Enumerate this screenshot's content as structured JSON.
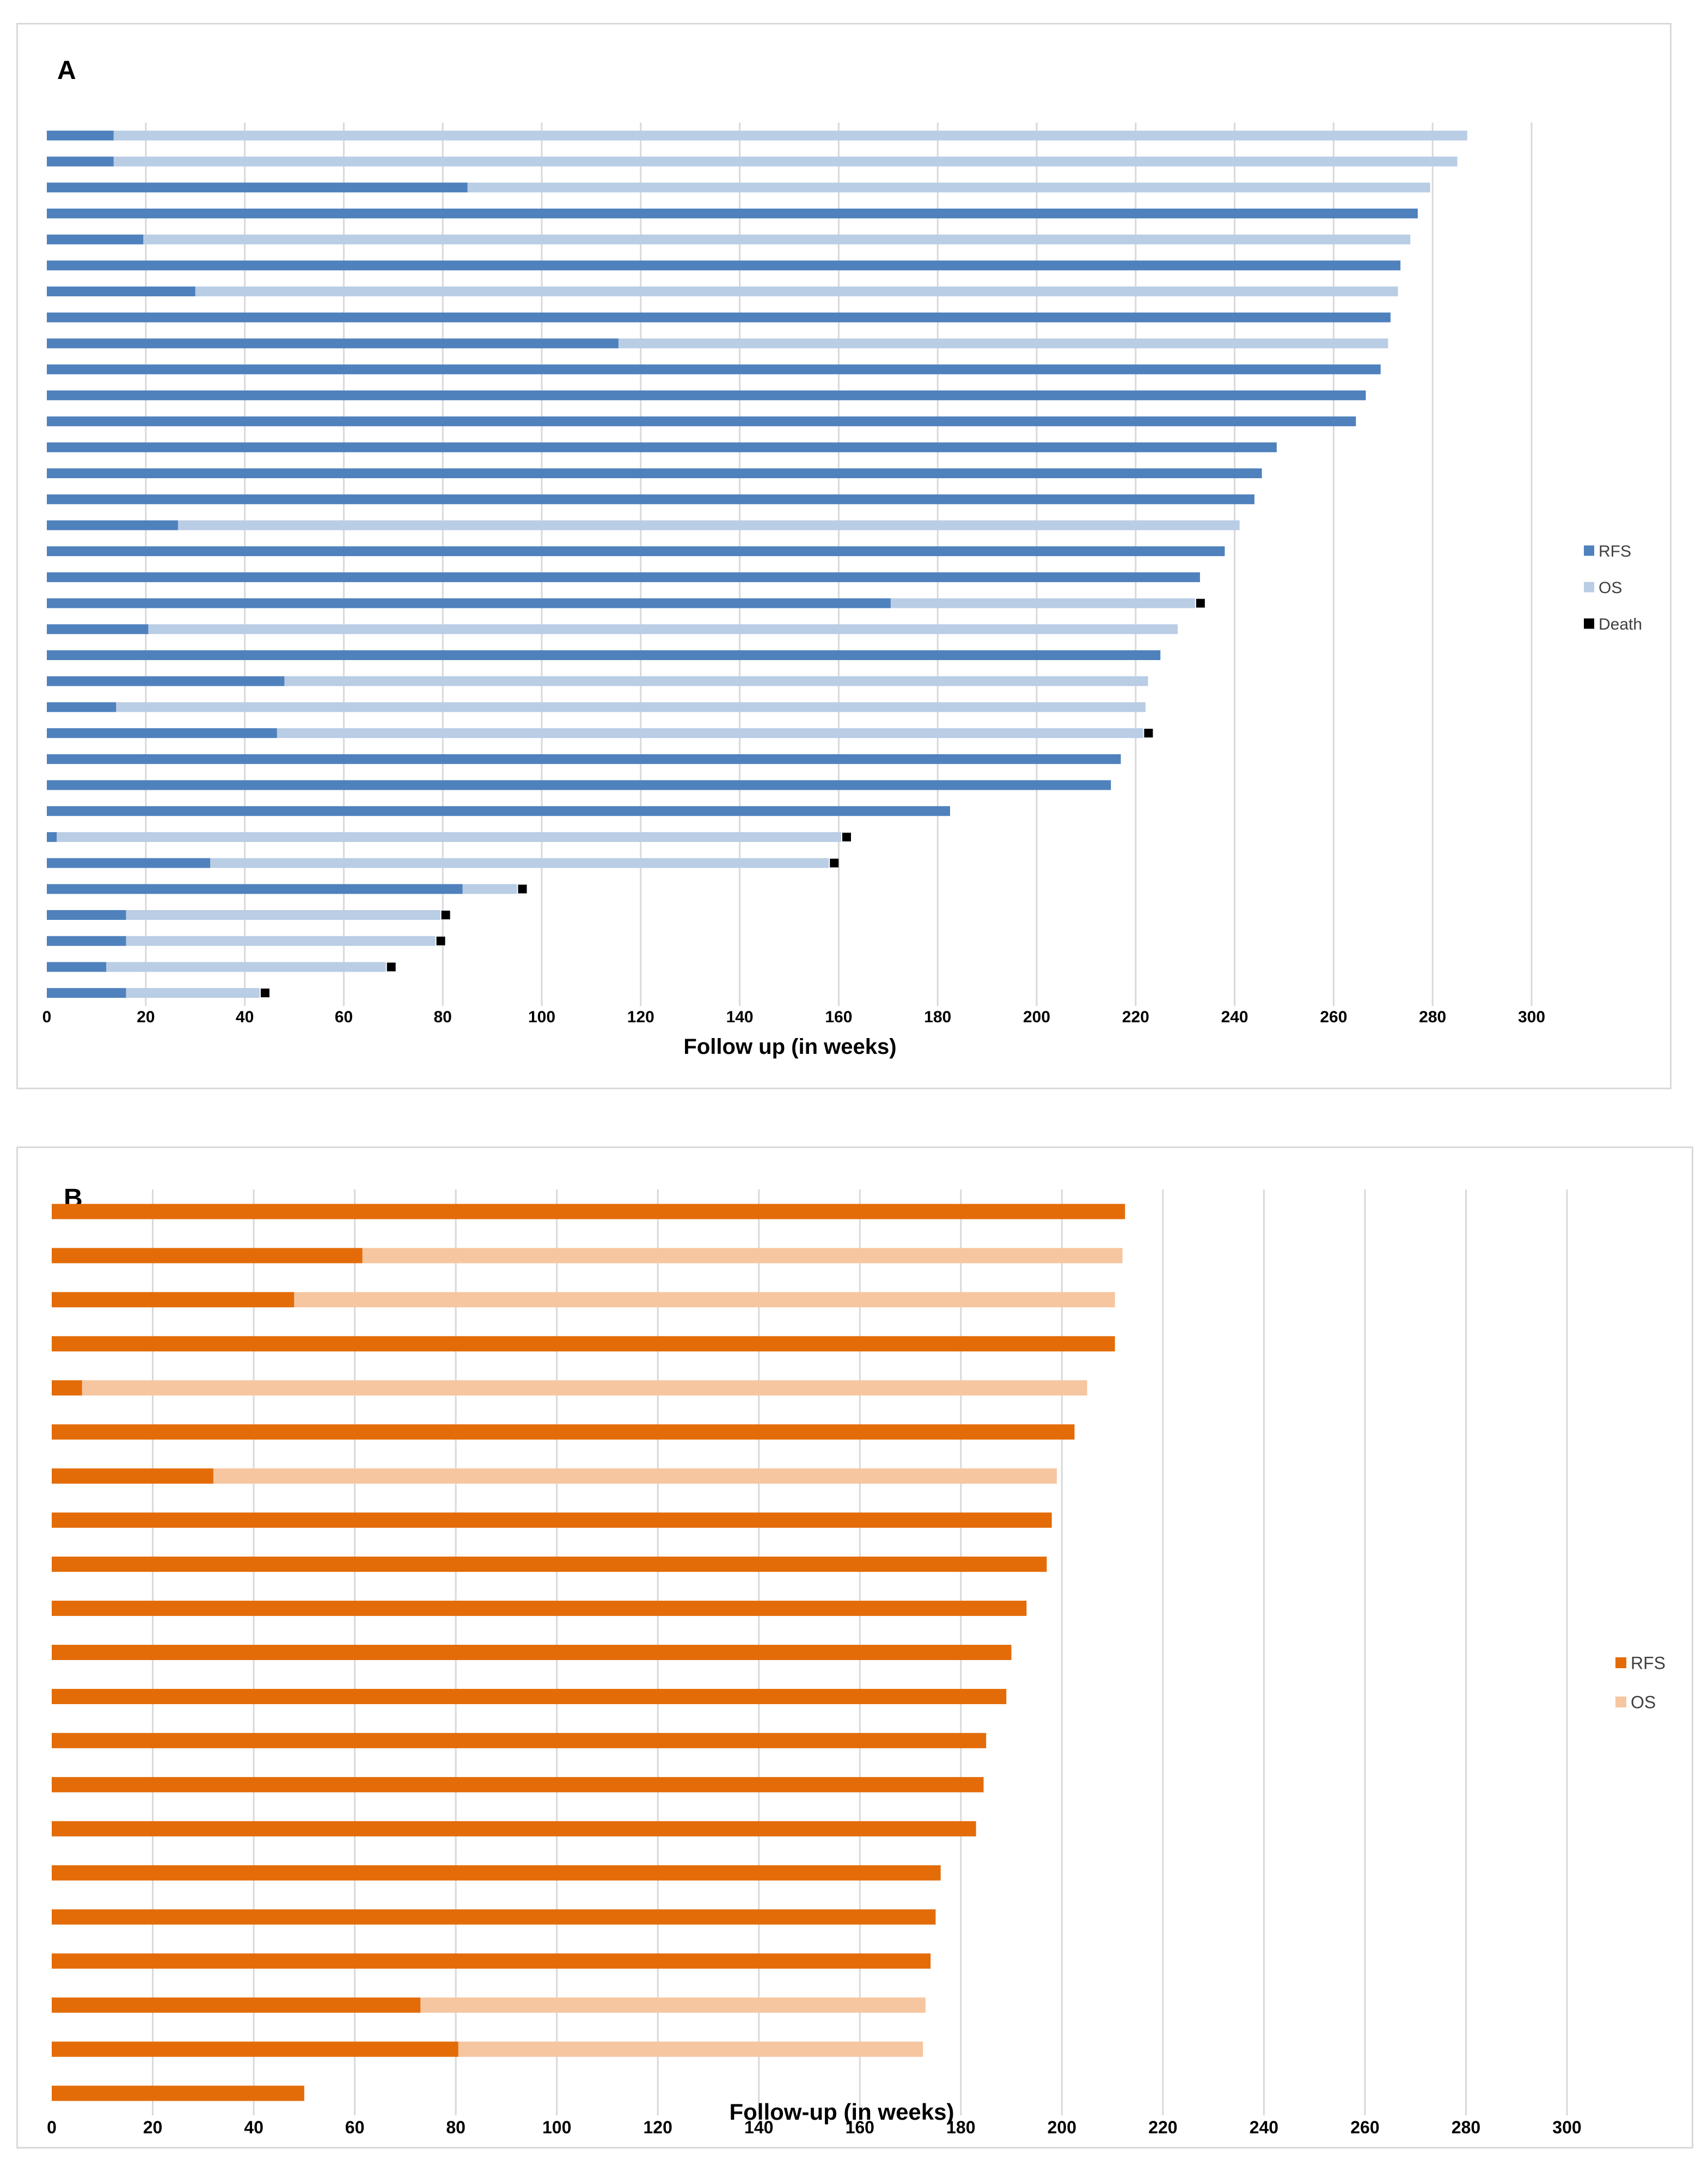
{
  "chart_data": [
    {
      "type": "bar",
      "orientation": "horizontal",
      "stacked": true,
      "panel_label": "A",
      "xlabel": "Follow up (in weeks)",
      "ylabel": "",
      "xlim": [
        0,
        300
      ],
      "xticks": [
        "0",
        "20",
        "40",
        "60",
        "80",
        "100",
        "120",
        "140",
        "160",
        "180",
        "200",
        "220",
        "240",
        "260",
        "280",
        "300"
      ],
      "grid": "vertical",
      "legend_position": "right",
      "legend": [
        "RFS",
        "OS",
        "Death"
      ],
      "colors": {
        "rfs": "#4f81bd",
        "os": "#b9cde5",
        "death": "#000000"
      },
      "rows": [
        {
          "rfs": 13.5,
          "os": 287,
          "death": false
        },
        {
          "rfs": 13.5,
          "os": 285,
          "death": false
        },
        {
          "rfs": 85,
          "os": 279.5,
          "death": false
        },
        {
          "rfs": 277,
          "os": 277,
          "death": false
        },
        {
          "rfs": 19.5,
          "os": 275.5,
          "death": false
        },
        {
          "rfs": 273.5,
          "os": 273.5,
          "death": false
        },
        {
          "rfs": 30,
          "os": 273,
          "death": false
        },
        {
          "rfs": 271.5,
          "os": 271.5,
          "death": false
        },
        {
          "rfs": 115.5,
          "os": 271,
          "death": false
        },
        {
          "rfs": 269.5,
          "os": 269.5,
          "death": false
        },
        {
          "rfs": 266.5,
          "os": 266.5,
          "death": false
        },
        {
          "rfs": 264.5,
          "os": 264.5,
          "death": false
        },
        {
          "rfs": 248.5,
          "os": 248.5,
          "death": false
        },
        {
          "rfs": 245.5,
          "os": 245.5,
          "death": false
        },
        {
          "rfs": 244,
          "os": 244,
          "death": false
        },
        {
          "rfs": 26.5,
          "os": 241,
          "death": false
        },
        {
          "rfs": 238,
          "os": 238,
          "death": false
        },
        {
          "rfs": 233,
          "os": 233,
          "death": false
        },
        {
          "rfs": 170.5,
          "os": 232,
          "death": true
        },
        {
          "rfs": 20.5,
          "os": 228.5,
          "death": false
        },
        {
          "rfs": 225,
          "os": 225,
          "death": false
        },
        {
          "rfs": 48,
          "os": 222.5,
          "death": false
        },
        {
          "rfs": 14,
          "os": 222,
          "death": false
        },
        {
          "rfs": 46.5,
          "os": 221.5,
          "death": true
        },
        {
          "rfs": 217,
          "os": 217,
          "death": false
        },
        {
          "rfs": 215,
          "os": 215,
          "death": false
        },
        {
          "rfs": 182.5,
          "os": 182.5,
          "death": false
        },
        {
          "rfs": 2,
          "os": 160.5,
          "death": true
        },
        {
          "rfs": 33,
          "os": 158,
          "death": true
        },
        {
          "rfs": 84,
          "os": 95,
          "death": true
        },
        {
          "rfs": 16,
          "os": 79.5,
          "death": true
        },
        {
          "rfs": 16,
          "os": 78.5,
          "death": true
        },
        {
          "rfs": 12,
          "os": 68.5,
          "death": true
        },
        {
          "rfs": 16,
          "os": 43,
          "death": true
        }
      ]
    },
    {
      "type": "bar",
      "orientation": "horizontal",
      "stacked": true,
      "panel_label": "B",
      "xlabel": "Follow-up (in weeks)",
      "ylabel": "",
      "xlim": [
        0,
        300
      ],
      "xticks": [
        "0",
        "20",
        "40",
        "60",
        "80",
        "100",
        "120",
        "140",
        "160",
        "180",
        "200",
        "220",
        "240",
        "260",
        "280",
        "300"
      ],
      "grid": "vertical",
      "legend_position": "right",
      "legend": [
        "RFS",
        "OS"
      ],
      "colors": {
        "rfs": "#e36c09",
        "os": "#f6c6a0"
      },
      "rows": [
        {
          "rfs": 212.5,
          "os": 212.5
        },
        {
          "rfs": 61.5,
          "os": 212
        },
        {
          "rfs": 48,
          "os": 210.5
        },
        {
          "rfs": 210.5,
          "os": 210.5
        },
        {
          "rfs": 6,
          "os": 205
        },
        {
          "rfs": 202.5,
          "os": 202.5
        },
        {
          "rfs": 32,
          "os": 199
        },
        {
          "rfs": 198,
          "os": 198
        },
        {
          "rfs": 197,
          "os": 197
        },
        {
          "rfs": 193,
          "os": 193
        },
        {
          "rfs": 190,
          "os": 190
        },
        {
          "rfs": 189,
          "os": 189
        },
        {
          "rfs": 185,
          "os": 185
        },
        {
          "rfs": 184.5,
          "os": 184.5
        },
        {
          "rfs": 183,
          "os": 183
        },
        {
          "rfs": 176,
          "os": 176
        },
        {
          "rfs": 175,
          "os": 175
        },
        {
          "rfs": 174,
          "os": 174
        },
        {
          "rfs": 73,
          "os": 173
        },
        {
          "rfs": 80.5,
          "os": 172.5
        },
        {
          "rfs": 50,
          "os": 50
        }
      ]
    }
  ]
}
